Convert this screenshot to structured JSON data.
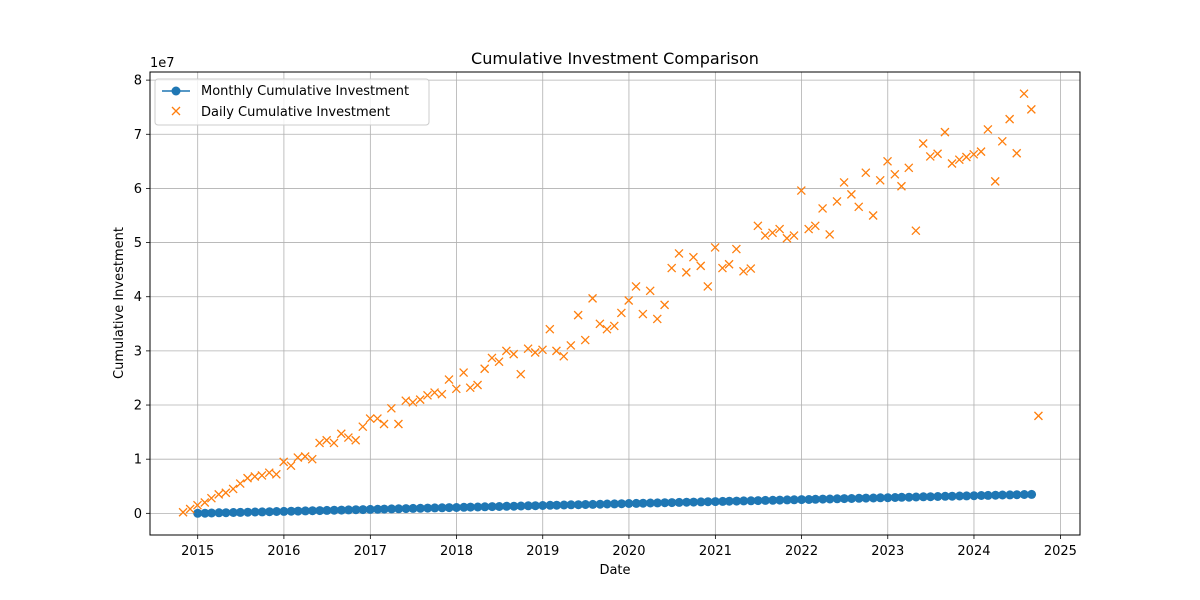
{
  "chart_data": {
    "type": "scatter",
    "title": "Cumulative Investment Comparison",
    "xlabel": "Date",
    "ylabel": "Cumulative Investment",
    "y_offset_label": "1e7",
    "xlim": [
      "2014-06-13",
      "2025-03-25"
    ],
    "ylim": [
      -4000000,
      81500000
    ],
    "x_ticks": [
      "2015",
      "2016",
      "2017",
      "2018",
      "2019",
      "2020",
      "2021",
      "2022",
      "2023",
      "2024",
      "2025"
    ],
    "y_ticks": [
      0,
      10000000,
      20000000,
      30000000,
      40000000,
      50000000,
      60000000,
      70000000,
      80000000
    ],
    "y_tick_labels": [
      "0",
      "1",
      "2",
      "3",
      "4",
      "5",
      "6",
      "7",
      "8"
    ],
    "grid": true,
    "legend_position": "top-left",
    "series": [
      {
        "name": "Monthly Cumulative Investment",
        "marker": "circle",
        "line": true,
        "color": "#1f77b4",
        "x_start": "2015-01-01",
        "x_step": "1 month",
        "points": 117,
        "y_start": 0,
        "y_end": 3500000
      },
      {
        "name": "Daily Cumulative Investment",
        "marker": "x",
        "line": false,
        "color": "#ff7f0e",
        "points": [
          [
            "2014-10-31",
            200000
          ],
          [
            "2014-11-30",
            800000
          ],
          [
            "2014-12-31",
            1500000
          ],
          [
            "2015-01-31",
            2000000
          ],
          [
            "2015-02-28",
            2800000
          ],
          [
            "2015-03-31",
            3500000
          ],
          [
            "2015-04-30",
            3800000
          ],
          [
            "2015-05-31",
            4500000
          ],
          [
            "2015-06-30",
            5500000
          ],
          [
            "2015-07-31",
            6500000
          ],
          [
            "2015-08-31",
            6800000
          ],
          [
            "2015-09-30",
            7000000
          ],
          [
            "2015-10-31",
            7500000
          ],
          [
            "2015-11-30",
            7200000
          ],
          [
            "2015-12-31",
            9500000
          ],
          [
            "2016-01-31",
            8800000
          ],
          [
            "2016-02-29",
            10300000
          ],
          [
            "2016-03-31",
            10500000
          ],
          [
            "2016-04-30",
            10000000
          ],
          [
            "2016-05-31",
            13000000
          ],
          [
            "2016-06-30",
            13500000
          ],
          [
            "2016-07-31",
            13000000
          ],
          [
            "2016-08-31",
            14700000
          ],
          [
            "2016-09-30",
            14000000
          ],
          [
            "2016-10-31",
            13500000
          ],
          [
            "2016-11-30",
            16000000
          ],
          [
            "2016-12-31",
            17500000
          ],
          [
            "2017-01-31",
            17500000
          ],
          [
            "2017-02-28",
            16500000
          ],
          [
            "2017-03-31",
            19400000
          ],
          [
            "2017-04-30",
            16500000
          ],
          [
            "2017-05-31",
            20800000
          ],
          [
            "2017-06-30",
            20500000
          ],
          [
            "2017-07-31",
            21000000
          ],
          [
            "2017-08-31",
            21800000
          ],
          [
            "2017-09-30",
            22300000
          ],
          [
            "2017-10-31",
            22000000
          ],
          [
            "2017-11-30",
            24700000
          ],
          [
            "2017-12-31",
            23000000
          ],
          [
            "2018-01-31",
            26000000
          ],
          [
            "2018-02-28",
            23200000
          ],
          [
            "2018-03-31",
            23700000
          ],
          [
            "2018-04-30",
            26700000
          ],
          [
            "2018-05-31",
            28700000
          ],
          [
            "2018-06-30",
            28000000
          ],
          [
            "2018-07-31",
            30000000
          ],
          [
            "2018-08-31",
            29400000
          ],
          [
            "2018-09-30",
            25700000
          ],
          [
            "2018-10-31",
            30400000
          ],
          [
            "2018-11-30",
            29700000
          ],
          [
            "2018-12-31",
            30200000
          ],
          [
            "2019-01-31",
            34000000
          ],
          [
            "2019-02-28",
            30000000
          ],
          [
            "2019-03-31",
            29000000
          ],
          [
            "2019-04-30",
            31000000
          ],
          [
            "2019-05-31",
            36600000
          ],
          [
            "2019-06-30",
            32000000
          ],
          [
            "2019-07-31",
            39700000
          ],
          [
            "2019-08-31",
            35000000
          ],
          [
            "2019-09-30",
            34000000
          ],
          [
            "2019-10-31",
            34600000
          ],
          [
            "2019-11-30",
            37000000
          ],
          [
            "2019-12-31",
            39300000
          ],
          [
            "2020-01-31",
            41900000
          ],
          [
            "2020-02-29",
            36800000
          ],
          [
            "2020-03-31",
            41100000
          ],
          [
            "2020-04-30",
            35900000
          ],
          [
            "2020-05-31",
            38500000
          ],
          [
            "2020-06-30",
            45300000
          ],
          [
            "2020-07-31",
            48000000
          ],
          [
            "2020-08-31",
            44500000
          ],
          [
            "2020-09-30",
            47300000
          ],
          [
            "2020-10-31",
            45700000
          ],
          [
            "2020-11-30",
            41900000
          ],
          [
            "2020-12-31",
            49100000
          ],
          [
            "2021-01-31",
            45300000
          ],
          [
            "2021-02-28",
            46000000
          ],
          [
            "2021-03-31",
            48800000
          ],
          [
            "2021-04-30",
            44700000
          ],
          [
            "2021-05-31",
            45200000
          ],
          [
            "2021-06-30",
            53100000
          ],
          [
            "2021-07-31",
            51300000
          ],
          [
            "2021-08-31",
            51800000
          ],
          [
            "2021-09-30",
            52500000
          ],
          [
            "2021-10-31",
            50800000
          ],
          [
            "2021-11-30",
            51300000
          ],
          [
            "2021-12-31",
            59600000
          ],
          [
            "2022-01-31",
            52500000
          ],
          [
            "2022-02-28",
            53100000
          ],
          [
            "2022-03-31",
            56300000
          ],
          [
            "2022-04-30",
            51500000
          ],
          [
            "2022-05-31",
            57600000
          ],
          [
            "2022-06-30",
            61100000
          ],
          [
            "2022-07-31",
            58900000
          ],
          [
            "2022-08-31",
            56600000
          ],
          [
            "2022-09-30",
            62900000
          ],
          [
            "2022-10-31",
            55000000
          ],
          [
            "2022-11-30",
            61500000
          ],
          [
            "2022-12-31",
            65000000
          ],
          [
            "2023-01-31",
            62600000
          ],
          [
            "2023-02-28",
            60400000
          ],
          [
            "2023-03-31",
            63800000
          ],
          [
            "2023-04-30",
            52200000
          ],
          [
            "2023-05-31",
            68300000
          ],
          [
            "2023-06-30",
            65900000
          ],
          [
            "2023-07-31",
            66400000
          ],
          [
            "2023-08-31",
            70400000
          ],
          [
            "2023-09-30",
            64600000
          ],
          [
            "2023-10-31",
            65300000
          ],
          [
            "2023-11-30",
            65800000
          ],
          [
            "2023-12-31",
            66300000
          ],
          [
            "2024-01-31",
            66800000
          ],
          [
            "2024-02-29",
            70900000
          ],
          [
            "2024-03-31",
            61300000
          ],
          [
            "2024-04-30",
            68700000
          ],
          [
            "2024-05-31",
            72800000
          ],
          [
            "2024-06-30",
            66500000
          ],
          [
            "2024-07-31",
            77500000
          ],
          [
            "2024-08-31",
            74600000
          ],
          [
            "2024-09-30",
            18000000
          ]
        ]
      }
    ]
  }
}
